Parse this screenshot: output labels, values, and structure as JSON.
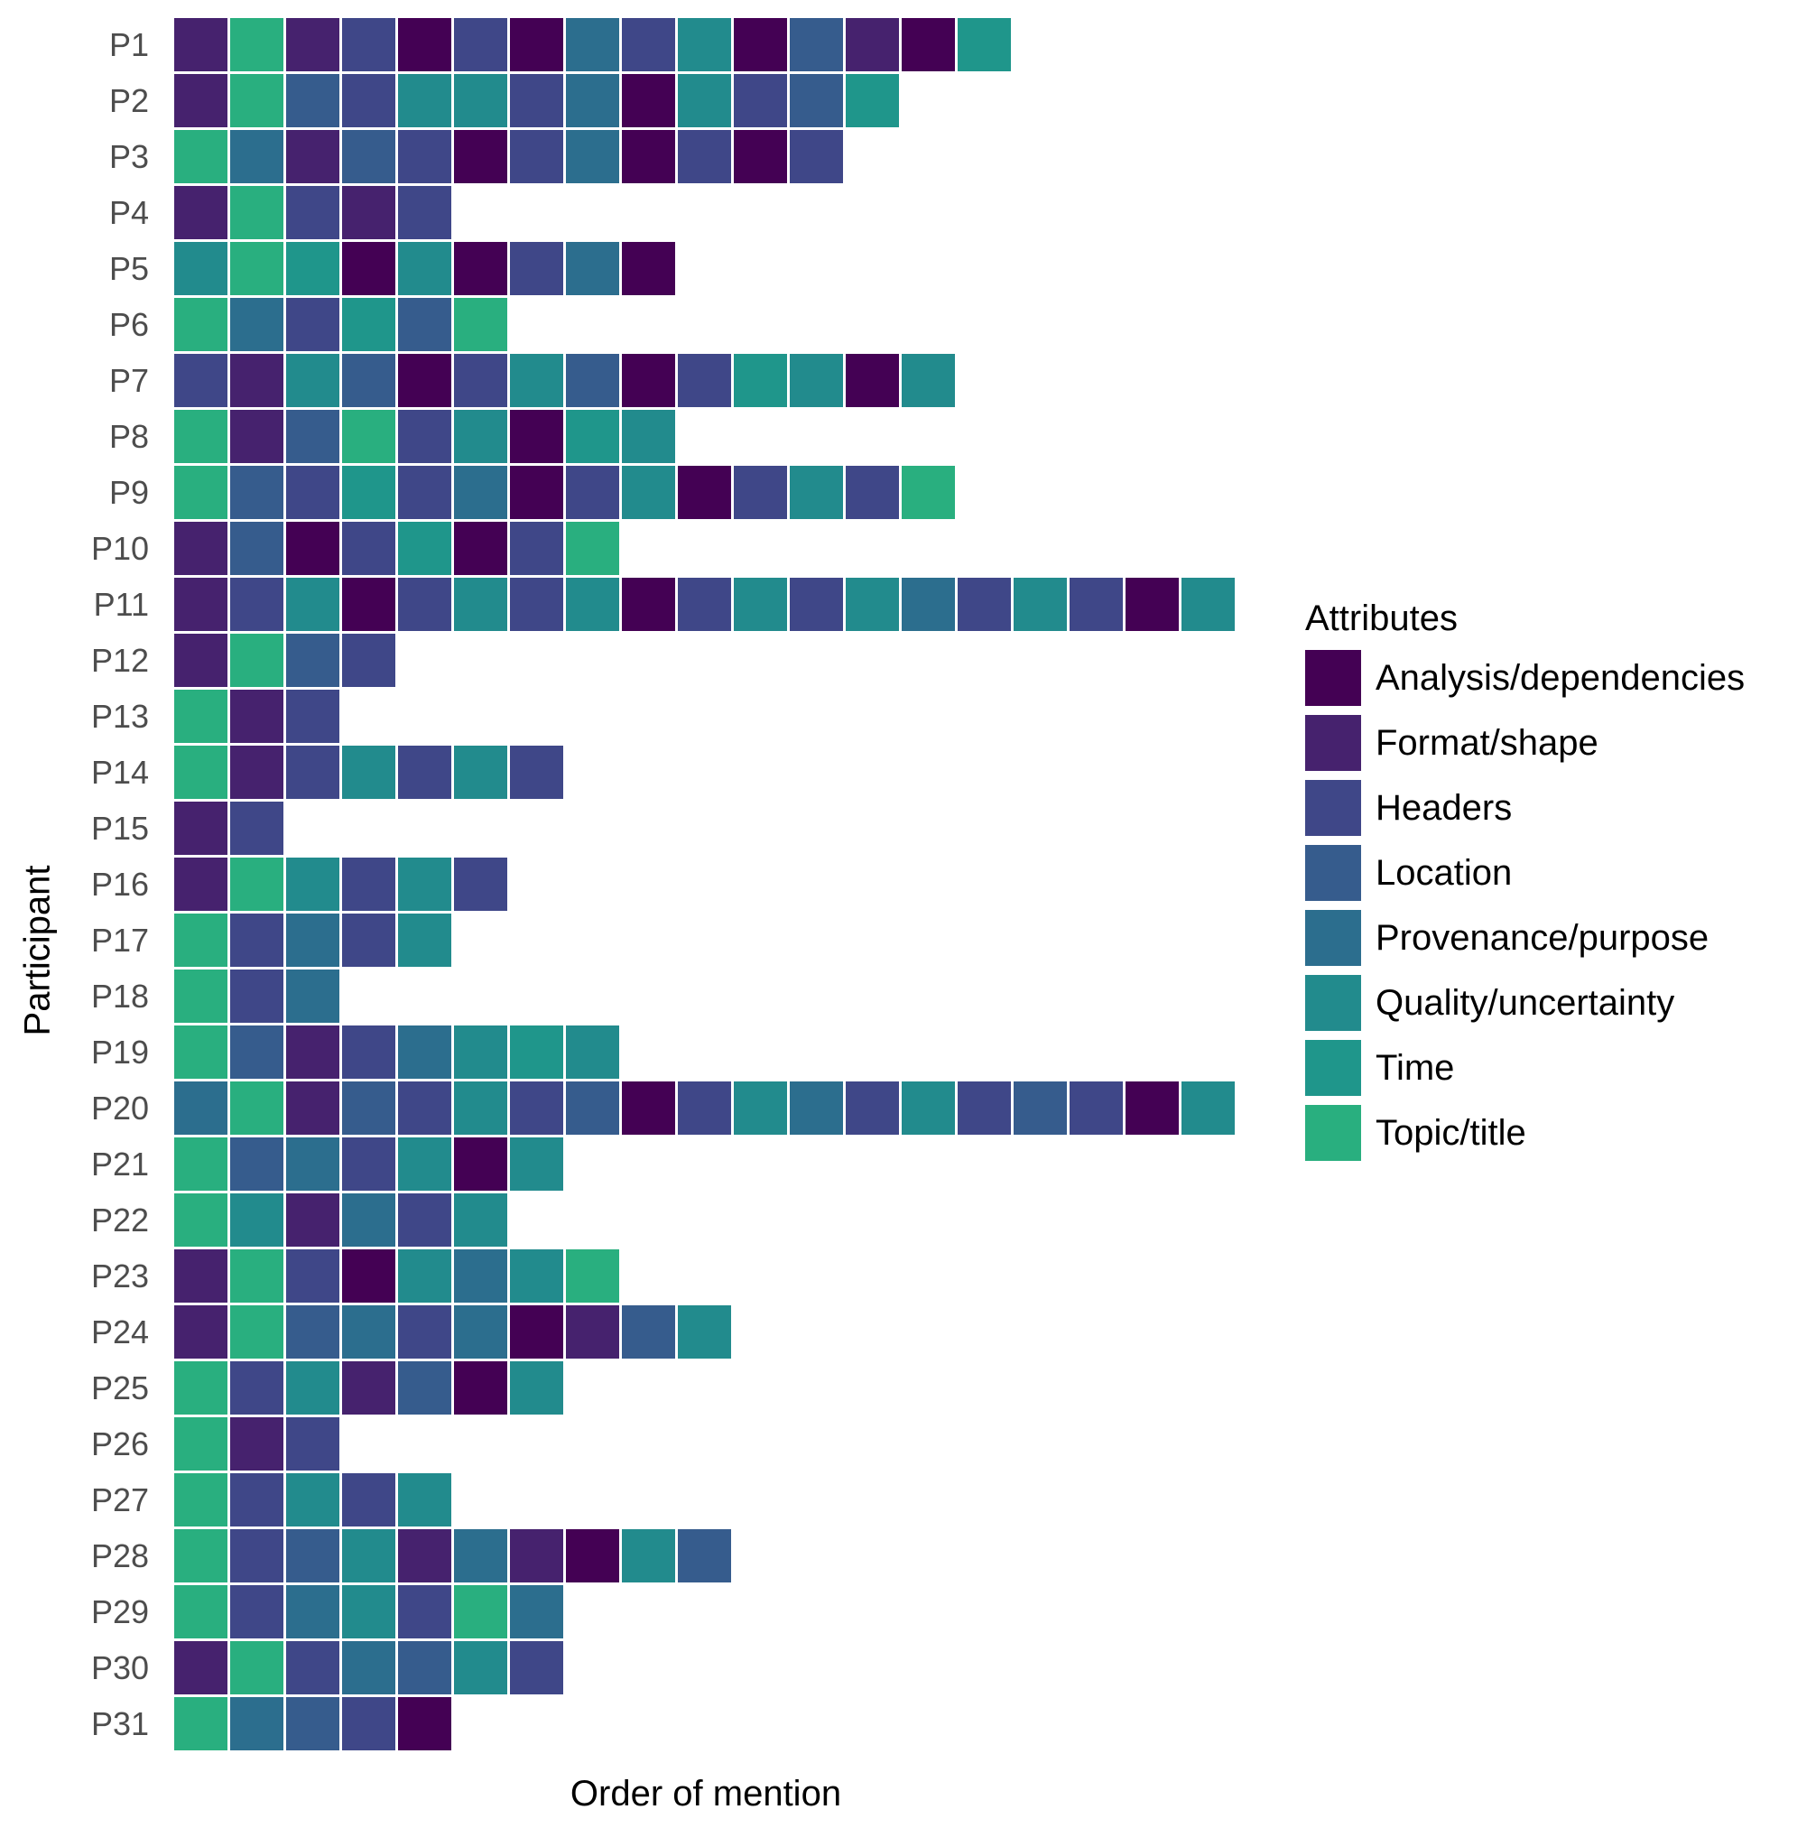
{
  "chart_data": {
    "type": "heatmap",
    "xlabel": "Order of mention",
    "ylabel": "Participant",
    "legend": {
      "title": "Attributes",
      "position": "right",
      "items": [
        {
          "label": "Analysis/dependencies",
          "color": "#440154"
        },
        {
          "label": "Format/shape",
          "color": "#46226e"
        },
        {
          "label": "Headers",
          "color": "#3f4788"
        },
        {
          "label": "Location",
          "color": "#365c8d"
        },
        {
          "label": "Provenance/purpose",
          "color": "#2c6e8e"
        },
        {
          "label": "Quality/uncertainty",
          "color": "#228b8d"
        },
        {
          "label": "Time",
          "color": "#1f968b"
        },
        {
          "label": "Topic/title",
          "color": "#29af7f"
        }
      ]
    },
    "grid": false,
    "participants": [
      {
        "label": "P1",
        "sequence": [
          "Format/shape",
          "Topic/title",
          "Format/shape",
          "Headers",
          "Analysis/dependencies",
          "Headers",
          "Analysis/dependencies",
          "Provenance/purpose",
          "Headers",
          "Quality/uncertainty",
          "Analysis/dependencies",
          "Location",
          "Format/shape",
          "Analysis/dependencies",
          "Time"
        ]
      },
      {
        "label": "P2",
        "sequence": [
          "Format/shape",
          "Topic/title",
          "Location",
          "Headers",
          "Quality/uncertainty",
          "Quality/uncertainty",
          "Headers",
          "Provenance/purpose",
          "Analysis/dependencies",
          "Quality/uncertainty",
          "Headers",
          "Location",
          "Time"
        ]
      },
      {
        "label": "P3",
        "sequence": [
          "Topic/title",
          "Provenance/purpose",
          "Format/shape",
          "Location",
          "Headers",
          "Analysis/dependencies",
          "Headers",
          "Provenance/purpose",
          "Analysis/dependencies",
          "Headers",
          "Analysis/dependencies",
          "Headers"
        ]
      },
      {
        "label": "P4",
        "sequence": [
          "Format/shape",
          "Topic/title",
          "Headers",
          "Format/shape",
          "Headers"
        ]
      },
      {
        "label": "P5",
        "sequence": [
          "Quality/uncertainty",
          "Topic/title",
          "Time",
          "Analysis/dependencies",
          "Quality/uncertainty",
          "Analysis/dependencies",
          "Headers",
          "Provenance/purpose",
          "Analysis/dependencies"
        ]
      },
      {
        "label": "P6",
        "sequence": [
          "Topic/title",
          "Provenance/purpose",
          "Headers",
          "Time",
          "Location",
          "Topic/title"
        ]
      },
      {
        "label": "P7",
        "sequence": [
          "Headers",
          "Format/shape",
          "Quality/uncertainty",
          "Location",
          "Analysis/dependencies",
          "Headers",
          "Quality/uncertainty",
          "Location",
          "Analysis/dependencies",
          "Headers",
          "Time",
          "Quality/uncertainty",
          "Analysis/dependencies",
          "Quality/uncertainty"
        ]
      },
      {
        "label": "P8",
        "sequence": [
          "Topic/title",
          "Format/shape",
          "Location",
          "Topic/title",
          "Headers",
          "Quality/uncertainty",
          "Analysis/dependencies",
          "Time",
          "Quality/uncertainty"
        ]
      },
      {
        "label": "P9",
        "sequence": [
          "Topic/title",
          "Location",
          "Headers",
          "Time",
          "Headers",
          "Provenance/purpose",
          "Analysis/dependencies",
          "Headers",
          "Quality/uncertainty",
          "Analysis/dependencies",
          "Headers",
          "Quality/uncertainty",
          "Headers",
          "Topic/title"
        ]
      },
      {
        "label": "P10",
        "sequence": [
          "Format/shape",
          "Location",
          "Analysis/dependencies",
          "Headers",
          "Time",
          "Analysis/dependencies",
          "Headers",
          "Topic/title"
        ]
      },
      {
        "label": "P11",
        "sequence": [
          "Format/shape",
          "Headers",
          "Quality/uncertainty",
          "Analysis/dependencies",
          "Headers",
          "Quality/uncertainty",
          "Headers",
          "Quality/uncertainty",
          "Analysis/dependencies",
          "Headers",
          "Quality/uncertainty",
          "Headers",
          "Quality/uncertainty",
          "Provenance/purpose",
          "Headers",
          "Quality/uncertainty",
          "Headers",
          "Analysis/dependencies",
          "Quality/uncertainty"
        ]
      },
      {
        "label": "P12",
        "sequence": [
          "Format/shape",
          "Topic/title",
          "Location",
          "Headers"
        ]
      },
      {
        "label": "P13",
        "sequence": [
          "Topic/title",
          "Format/shape",
          "Headers"
        ]
      },
      {
        "label": "P14",
        "sequence": [
          "Topic/title",
          "Format/shape",
          "Headers",
          "Quality/uncertainty",
          "Headers",
          "Quality/uncertainty",
          "Headers"
        ]
      },
      {
        "label": "P15",
        "sequence": [
          "Format/shape",
          "Headers"
        ]
      },
      {
        "label": "P16",
        "sequence": [
          "Format/shape",
          "Topic/title",
          "Quality/uncertainty",
          "Headers",
          "Quality/uncertainty",
          "Headers"
        ]
      },
      {
        "label": "P17",
        "sequence": [
          "Topic/title",
          "Headers",
          "Provenance/purpose",
          "Headers",
          "Quality/uncertainty"
        ]
      },
      {
        "label": "P18",
        "sequence": [
          "Topic/title",
          "Headers",
          "Provenance/purpose"
        ]
      },
      {
        "label": "P19",
        "sequence": [
          "Topic/title",
          "Location",
          "Format/shape",
          "Headers",
          "Provenance/purpose",
          "Quality/uncertainty",
          "Time",
          "Quality/uncertainty"
        ]
      },
      {
        "label": "P20",
        "sequence": [
          "Provenance/purpose",
          "Topic/title",
          "Format/shape",
          "Location",
          "Headers",
          "Quality/uncertainty",
          "Headers",
          "Location",
          "Analysis/dependencies",
          "Headers",
          "Quality/uncertainty",
          "Provenance/purpose",
          "Headers",
          "Quality/uncertainty",
          "Headers",
          "Location",
          "Headers",
          "Analysis/dependencies",
          "Quality/uncertainty"
        ]
      },
      {
        "label": "P21",
        "sequence": [
          "Topic/title",
          "Location",
          "Provenance/purpose",
          "Headers",
          "Quality/uncertainty",
          "Analysis/dependencies",
          "Quality/uncertainty"
        ]
      },
      {
        "label": "P22",
        "sequence": [
          "Topic/title",
          "Quality/uncertainty",
          "Format/shape",
          "Provenance/purpose",
          "Headers",
          "Quality/uncertainty"
        ]
      },
      {
        "label": "P23",
        "sequence": [
          "Format/shape",
          "Topic/title",
          "Headers",
          "Analysis/dependencies",
          "Quality/uncertainty",
          "Provenance/purpose",
          "Quality/uncertainty",
          "Topic/title"
        ]
      },
      {
        "label": "P24",
        "sequence": [
          "Format/shape",
          "Topic/title",
          "Location",
          "Provenance/purpose",
          "Headers",
          "Provenance/purpose",
          "Analysis/dependencies",
          "Format/shape",
          "Location",
          "Quality/uncertainty"
        ]
      },
      {
        "label": "P25",
        "sequence": [
          "Topic/title",
          "Headers",
          "Quality/uncertainty",
          "Format/shape",
          "Location",
          "Analysis/dependencies",
          "Quality/uncertainty"
        ]
      },
      {
        "label": "P26",
        "sequence": [
          "Topic/title",
          "Format/shape",
          "Headers"
        ]
      },
      {
        "label": "P27",
        "sequence": [
          "Topic/title",
          "Headers",
          "Quality/uncertainty",
          "Headers",
          "Quality/uncertainty"
        ]
      },
      {
        "label": "P28",
        "sequence": [
          "Topic/title",
          "Headers",
          "Location",
          "Quality/uncertainty",
          "Format/shape",
          "Provenance/purpose",
          "Format/shape",
          "Analysis/dependencies",
          "Quality/uncertainty",
          "Location"
        ]
      },
      {
        "label": "P29",
        "sequence": [
          "Topic/title",
          "Headers",
          "Provenance/purpose",
          "Quality/uncertainty",
          "Headers",
          "Topic/title",
          "Provenance/purpose"
        ]
      },
      {
        "label": "P30",
        "sequence": [
          "Format/shape",
          "Topic/title",
          "Headers",
          "Provenance/purpose",
          "Location",
          "Quality/uncertainty",
          "Headers"
        ]
      },
      {
        "label": "P31",
        "sequence": [
          "Topic/title",
          "Provenance/purpose",
          "Location",
          "Headers",
          "Analysis/dependencies"
        ]
      }
    ]
  }
}
